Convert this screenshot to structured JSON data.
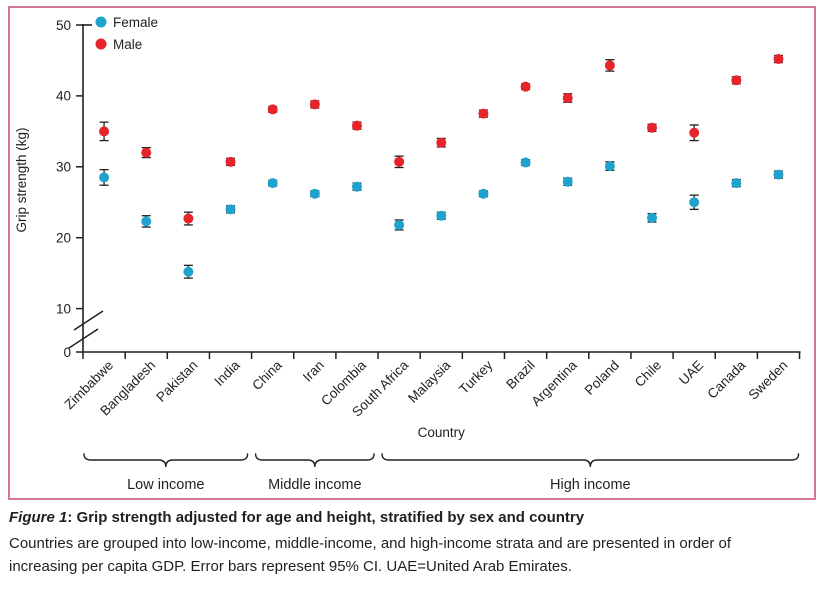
{
  "figure": {
    "caption_label": "Figure 1",
    "caption_title": ": Grip strength adjusted for age and height, stratified by sex and country",
    "caption_body": "Countries are grouped into low-income, middle-income, and high-income strata and are presented in order of increasing per capita GDP. Error bars represent 95% CI. UAE=United Arab Emirates."
  },
  "colors": {
    "female": "#1fa3cc",
    "male": "#e8242b",
    "axis": "#231f20",
    "panel_border": "#cf7890",
    "background": "#ffffff"
  },
  "chart_data": {
    "type": "scatter",
    "title": "",
    "xlabel": "Country",
    "ylabel": "Grip strength (kg)",
    "ylim": [
      0,
      50
    ],
    "yticks": [
      50,
      40,
      30,
      20,
      10,
      0
    ],
    "axis_break_between": [
      0,
      10
    ],
    "grid": false,
    "legend_position": "top-left",
    "legend": [
      "Female",
      "Male"
    ],
    "categories": [
      "Zimbabwe",
      "Bangladesh",
      "Pakistan",
      "India",
      "China",
      "Iran",
      "Colombia",
      "South Africa",
      "Malaysia",
      "Turkey",
      "Brazil",
      "Argentina",
      "Poland",
      "Chile",
      "UAE",
      "Canada",
      "Sweden"
    ],
    "series": [
      {
        "name": "Female",
        "color": "#1fa3cc",
        "values": [
          28.5,
          22.3,
          15.2,
          24.0,
          27.7,
          26.2,
          27.2,
          21.8,
          23.1,
          26.2,
          30.6,
          27.9,
          30.1,
          22.8,
          25.0,
          27.7,
          28.9
        ],
        "ci": [
          1.1,
          0.8,
          0.9,
          0.5,
          0.4,
          0.4,
          0.5,
          0.7,
          0.5,
          0.4,
          0.4,
          0.5,
          0.6,
          0.6,
          1.0,
          0.5,
          0.5
        ]
      },
      {
        "name": "Male",
        "color": "#e8242b",
        "values": [
          35.0,
          32.0,
          22.7,
          30.7,
          38.1,
          38.8,
          35.8,
          30.7,
          33.4,
          37.5,
          41.3,
          39.7,
          44.3,
          35.5,
          34.8,
          42.2,
          45.2
        ],
        "ci": [
          1.3,
          0.7,
          0.9,
          0.5,
          0.4,
          0.5,
          0.5,
          0.8,
          0.6,
          0.5,
          0.4,
          0.6,
          0.8,
          0.5,
          1.1,
          0.5,
          0.5
        ]
      }
    ],
    "income_groups": [
      {
        "label": "Low income",
        "start_index": 0,
        "end_index": 3
      },
      {
        "label": "Middle income",
        "start_index": 4,
        "end_index": 6
      },
      {
        "label": "High income",
        "start_index": 7,
        "end_index": 16
      }
    ]
  }
}
